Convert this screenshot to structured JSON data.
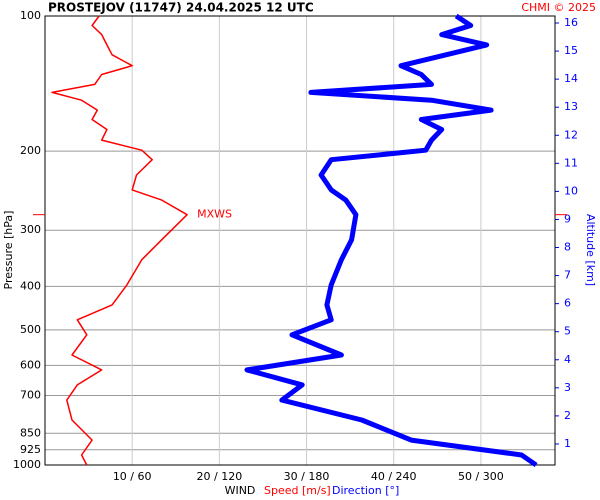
{
  "chart_data": {
    "type": "line",
    "title": "PROSTEJOV (11747)    24.04.2025 12 UTC",
    "credit": "CHMI © 2025",
    "ylabel": "Pressure [hPa]",
    "y2label": "Altitude [km]",
    "xlabel": "WIND",
    "xlabel_speed": "Speed [m/s]",
    "xlabel_direction": "Direction [°]",
    "ylog": true,
    "grid": true,
    "ylim": [
      1000,
      100
    ],
    "yticks": [
      100,
      200,
      300,
      400,
      500,
      600,
      700,
      850,
      925,
      1000
    ],
    "y2lim": [
      0.25,
      16.25
    ],
    "y2ticks": [
      1,
      2,
      3,
      4,
      5,
      6,
      7,
      8,
      9,
      10,
      11,
      12,
      13,
      14,
      15,
      16
    ],
    "y2color": "#0000ff",
    "xlim": [
      0,
      58.5
    ],
    "x2lim": [
      0,
      351
    ],
    "xticks": [
      {
        "value": 10,
        "label": "10 / 60"
      },
      {
        "value": 20,
        "label": "20 / 120"
      },
      {
        "value": 30,
        "label": "30 / 180"
      },
      {
        "value": 40,
        "label": "40 / 240"
      },
      {
        "value": 50,
        "label": "50 / 300"
      }
    ],
    "pressure": [
      100,
      105,
      110,
      116,
      122,
      129,
      135,
      142,
      148,
      154,
      162,
      170,
      179,
      189,
      199,
      209,
      226,
      244,
      257,
      277,
      315,
      349,
      397,
      440,
      475,
      513,
      569,
      614,
      663,
      717,
      794,
      880,
      950,
      1000
    ],
    "series": [
      {
        "name": "Speed [m/s]",
        "color": "#ff0000",
        "axis": "x",
        "values": [
          6.2,
          5.4,
          6.5,
          7.1,
          7.7,
          10.0,
          6.5,
          5.7,
          0.8,
          4.2,
          6.0,
          5.4,
          7.1,
          6.5,
          11.1,
          12.3,
          10.5,
          10.0,
          13.4,
          16.3,
          13.4,
          11.1,
          9.4,
          7.7,
          3.7,
          4.8,
          3.1,
          6.5,
          3.7,
          2.5,
          3.1,
          5.4,
          4.2,
          4.8
        ]
      },
      {
        "name": "Direction [°]",
        "color": "#0000ff",
        "axis": "x2",
        "values": [
          283,
          293,
          273,
          304,
          276,
          245,
          259,
          266,
          183,
          266,
          307,
          259,
          273,
          266,
          262,
          197,
          190,
          197,
          207,
          214,
          211,
          204,
          197,
          194,
          197,
          170,
          204,
          139,
          177,
          163,
          218,
          252,
          328,
          338
        ]
      }
    ],
    "annotation": {
      "text": "MXWS",
      "pressure": 277,
      "color": "#ff0000"
    }
  }
}
